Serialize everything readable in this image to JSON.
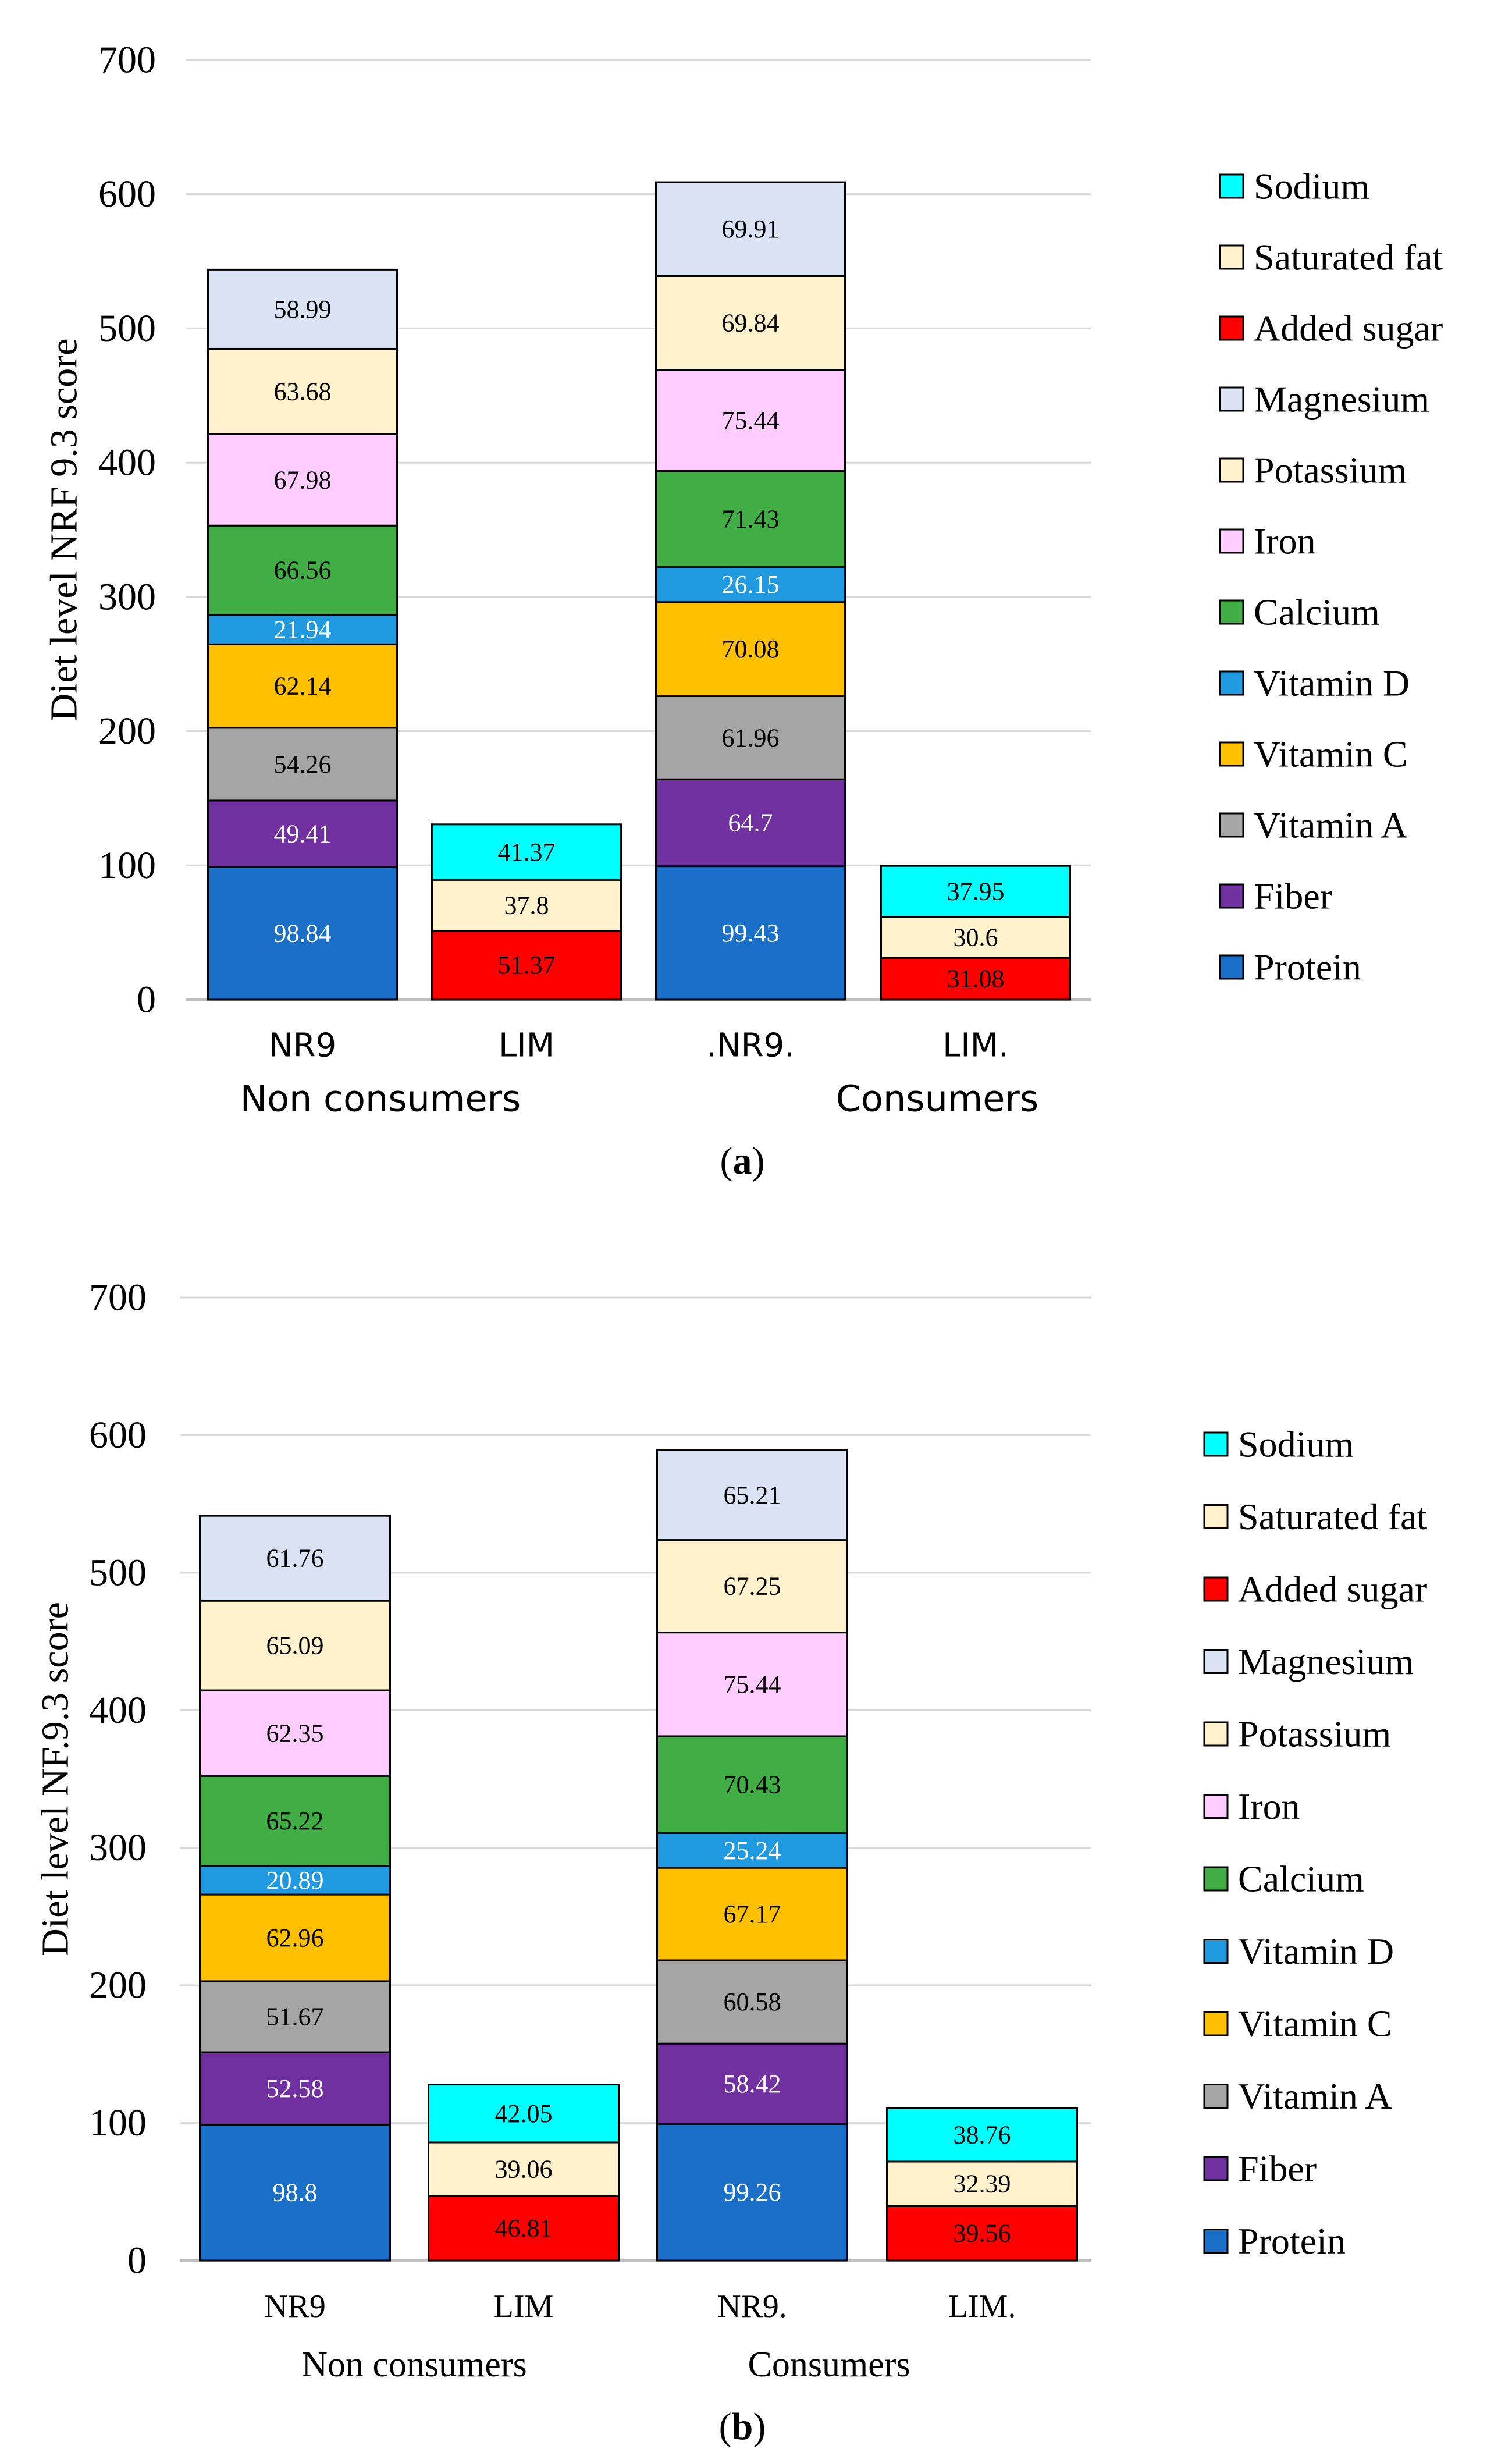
{
  "series_meta": [
    {
      "key": "Protein",
      "color": "#1a6fc9",
      "label_color": "#ffffff"
    },
    {
      "key": "Fiber",
      "color": "#7030a0",
      "label_color": "#ffffff"
    },
    {
      "key": "Vitamin A",
      "color": "#a5a5a5",
      "label_color": "#000000"
    },
    {
      "key": "Vitamin C",
      "color": "#ffc000",
      "label_color": "#000000"
    },
    {
      "key": "Vitamin D",
      "color": "#1f9ae0",
      "label_color": "#ffffff"
    },
    {
      "key": "Calcium",
      "color": "#41ad45",
      "label_color": "#000000"
    },
    {
      "key": "Iron",
      "color": "#ffccff",
      "label_color": "#000000"
    },
    {
      "key": "Potassium",
      "color": "#fff2cc",
      "label_color": "#000000"
    },
    {
      "key": "Magnesium",
      "color": "#dae3f3",
      "label_color": "#000000"
    },
    {
      "key": "Added sugar",
      "color": "#ff0000",
      "label_color": "#000000"
    },
    {
      "key": "Saturated fat",
      "color": "#fff2cc",
      "label_color": "#000000"
    },
    {
      "key": "Sodium",
      "color": "#00ffff",
      "label_color": "#000000"
    }
  ],
  "chart_data": [
    {
      "type": "bar",
      "stacked": true,
      "caption": "(a)",
      "caption_letter": "a",
      "ylabel": "Diet level NRF 9.3 score",
      "ylim": [
        0,
        700
      ],
      "yticks": [
        "0",
        "100",
        "200",
        "300",
        "400",
        "500",
        "600",
        "700"
      ],
      "categories": [
        "NR9",
        "LIM",
        ".NR9.",
        "LIM."
      ],
      "groups": [
        "Non consumers",
        "Consumers"
      ],
      "legend": [
        "Sodium",
        "Saturated fat",
        "Added sugar",
        "Magnesium",
        "Potassium",
        "Iron",
        "Calcium",
        "Vitamin D",
        "Vitamin C",
        "Vitamin A",
        "Fiber",
        "Protein"
      ],
      "series": [
        {
          "name": "Protein",
          "values": [
            98.84,
            null,
            99.43,
            null
          ]
        },
        {
          "name": "Fiber",
          "values": [
            49.41,
            null,
            64.7,
            null
          ]
        },
        {
          "name": "Vitamin A",
          "values": [
            54.26,
            null,
            61.96,
            null
          ]
        },
        {
          "name": "Vitamin C",
          "values": [
            62.14,
            null,
            70.08,
            null
          ]
        },
        {
          "name": "Vitamin D",
          "values": [
            21.94,
            null,
            26.15,
            null
          ]
        },
        {
          "name": "Calcium",
          "values": [
            66.56,
            null,
            71.43,
            null
          ]
        },
        {
          "name": "Iron",
          "values": [
            67.98,
            null,
            75.44,
            null
          ]
        },
        {
          "name": "Potassium",
          "values": [
            63.68,
            null,
            69.84,
            null
          ]
        },
        {
          "name": "Magnesium",
          "values": [
            58.99,
            null,
            69.91,
            null
          ]
        },
        {
          "name": "Added sugar",
          "values": [
            null,
            51.37,
            null,
            31.08
          ]
        },
        {
          "name": "Saturated fat",
          "values": [
            null,
            37.8,
            null,
            30.6
          ]
        },
        {
          "name": "Sodium",
          "values": [
            null,
            41.37,
            null,
            37.95
          ]
        }
      ]
    },
    {
      "type": "bar",
      "stacked": true,
      "caption": "(b)",
      "caption_letter": "b",
      "ylabel": "Diet level NF.9.3 score",
      "ylim": [
        0,
        700
      ],
      "yticks": [
        "0",
        "100",
        "200",
        "300",
        "400",
        "500",
        "600",
        "700"
      ],
      "categories": [
        "NR9",
        "LIM",
        "NR9.",
        "LIM."
      ],
      "groups": [
        "Non consumers",
        "Consumers"
      ],
      "legend": [
        "Sodium",
        "Saturated fat",
        "Added sugar",
        "Magnesium",
        "Potassium",
        "Iron",
        "Calcium",
        "Vitamin D",
        "Vitamin C",
        "Vitamin A",
        "Fiber",
        "Protein"
      ],
      "series": [
        {
          "name": "Protein",
          "values": [
            98.8,
            null,
            99.26,
            null
          ]
        },
        {
          "name": "Fiber",
          "values": [
            52.58,
            null,
            58.42,
            null
          ]
        },
        {
          "name": "Vitamin A",
          "values": [
            51.67,
            null,
            60.58,
            null
          ]
        },
        {
          "name": "Vitamin C",
          "values": [
            62.96,
            null,
            67.17,
            null
          ]
        },
        {
          "name": "Vitamin D",
          "values": [
            20.89,
            null,
            25.24,
            null
          ]
        },
        {
          "name": "Calcium",
          "values": [
            65.22,
            null,
            70.43,
            null
          ]
        },
        {
          "name": "Iron",
          "values": [
            62.35,
            null,
            75.44,
            null
          ]
        },
        {
          "name": "Potassium",
          "values": [
            65.09,
            null,
            67.25,
            null
          ]
        },
        {
          "name": "Magnesium",
          "values": [
            61.76,
            null,
            65.21,
            null
          ]
        },
        {
          "name": "Added sugar",
          "values": [
            null,
            46.81,
            null,
            39.56
          ]
        },
        {
          "name": "Saturated fat",
          "values": [
            null,
            39.06,
            null,
            32.39
          ]
        },
        {
          "name": "Sodium",
          "values": [
            null,
            42.05,
            null,
            38.76
          ]
        }
      ]
    }
  ]
}
